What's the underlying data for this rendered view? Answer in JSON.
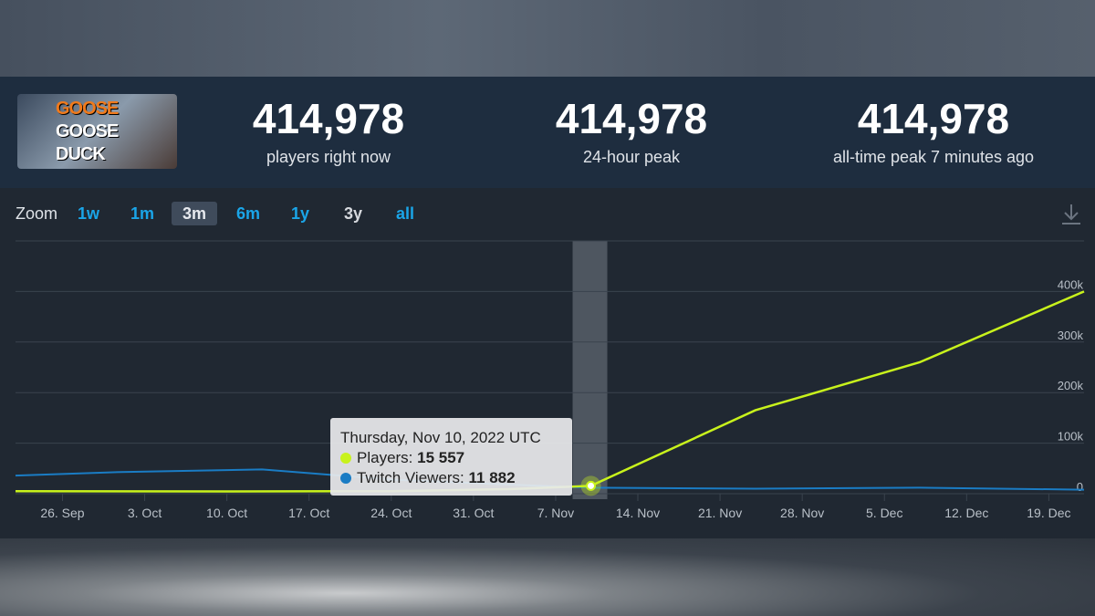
{
  "game": {
    "title_lines": [
      "GOOSE",
      "GOOSE",
      "DUCK"
    ]
  },
  "stats": [
    {
      "value": "414,978",
      "label": "players right now"
    },
    {
      "value": "414,978",
      "label": "24-hour peak"
    },
    {
      "value": "414,978",
      "label": "all-time peak 7 minutes ago"
    }
  ],
  "zoom": {
    "label": "Zoom",
    "options": [
      "1w",
      "1m",
      "3m",
      "6m",
      "1y",
      "3y",
      "all"
    ],
    "selected": "3m"
  },
  "tooltip": {
    "date": "Thursday, Nov 10, 2022 UTC",
    "players_label": "Players: ",
    "players_value": "15 557",
    "twitch_label": "Twitch Viewers: ",
    "twitch_value": "11 882"
  },
  "chart_data": {
    "type": "line",
    "x_range": [
      "2022-09-22",
      "2022-12-22"
    ],
    "y_range": [
      0,
      500000
    ],
    "x_ticks": [
      "26. Sep",
      "3. Oct",
      "10. Oct",
      "17. Oct",
      "24. Oct",
      "31. Oct",
      "7. Nov",
      "14. Nov",
      "21. Nov",
      "28. Nov",
      "5. Dec",
      "12. Dec",
      "19. Dec"
    ],
    "y_ticks": [
      {
        "v": 0,
        "label": "0"
      },
      {
        "v": 100000,
        "label": "100k"
      },
      {
        "v": 200000,
        "label": "200k"
      },
      {
        "v": 300000,
        "label": "300k"
      },
      {
        "v": 400000,
        "label": "400k"
      }
    ],
    "highlight_date": "2022-11-10",
    "series": [
      {
        "name": "Players",
        "color": "#c8f21c",
        "points": [
          [
            "2022-09-22",
            5000
          ],
          [
            "2022-10-10",
            4500
          ],
          [
            "2022-10-24",
            5000
          ],
          [
            "2022-11-03",
            9000
          ],
          [
            "2022-11-10",
            15557
          ],
          [
            "2022-11-24",
            165000
          ],
          [
            "2022-12-08",
            260000
          ],
          [
            "2022-12-22",
            400000
          ]
        ]
      },
      {
        "name": "Twitch Viewers",
        "color": "#1a7cc4",
        "points": [
          [
            "2022-09-22",
            36000
          ],
          [
            "2022-10-01",
            43000
          ],
          [
            "2022-10-13",
            48000
          ],
          [
            "2022-10-24",
            28000
          ],
          [
            "2022-11-03",
            18000
          ],
          [
            "2022-11-10",
            11882
          ],
          [
            "2022-11-24",
            10000
          ],
          [
            "2022-12-08",
            12000
          ],
          [
            "2022-12-22",
            8000
          ]
        ]
      }
    ]
  }
}
